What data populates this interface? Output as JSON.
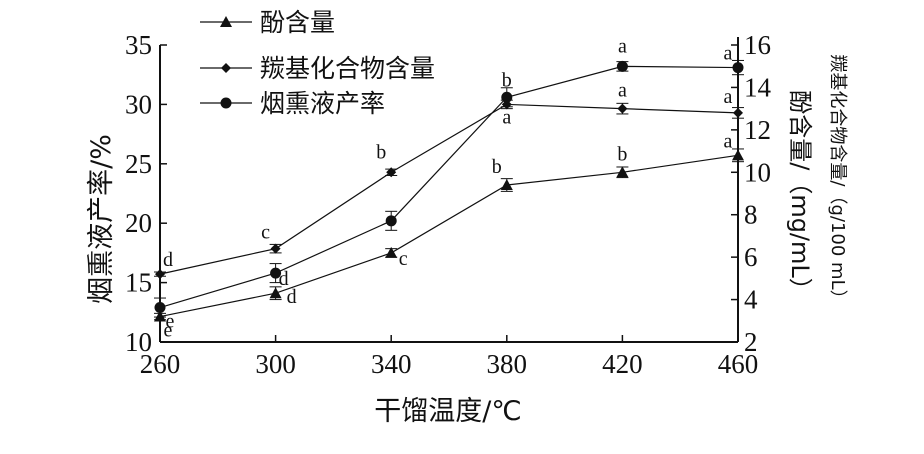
{
  "chart_data": {
    "type": "line",
    "xlabel": "干馏温度/℃",
    "ylabel_left": "烟熏液产率/%",
    "ylabel_right_inner": "酚含量/（mg/mL）",
    "ylabel_right_outer": "羰基化合物含量/（g/100 mL）",
    "x": [
      260,
      300,
      340,
      380,
      420,
      460
    ],
    "xlim": [
      260,
      460
    ],
    "y_left_lim": [
      10,
      35
    ],
    "y_left_ticks": [
      10,
      15,
      20,
      25,
      30,
      35
    ],
    "y_right_lim": [
      2,
      16
    ],
    "y_right_ticks": [
      2,
      4,
      6,
      8,
      10,
      12,
      14,
      16
    ],
    "legend_position": "top-left",
    "series": [
      {
        "name": "酚含量",
        "marker": "triangle",
        "axis": "right",
        "values": [
          3.2,
          4.3,
          6.2,
          9.4,
          10.0,
          10.8
        ],
        "errors": [
          0.15,
          0.3,
          0.2,
          0.3,
          0.25,
          0.3
        ],
        "letters": [
          "e",
          "d",
          "c",
          "b",
          "b",
          "a"
        ]
      },
      {
        "name": "羰基化合物含量",
        "marker": "diamond",
        "axis": "right",
        "values": [
          5.2,
          6.4,
          10.0,
          13.2,
          13.0,
          12.8
        ],
        "errors": [
          0.1,
          0.2,
          0.15,
          0.2,
          0.25,
          0.25
        ],
        "letters": [
          "d",
          "c",
          "b",
          "b",
          "a",
          "a"
        ]
      },
      {
        "name": "烟熏液产率",
        "marker": "circle",
        "axis": "left",
        "values": [
          12.9,
          15.8,
          20.2,
          30.6,
          33.2,
          33.1
        ],
        "errors": [
          0.8,
          0.8,
          0.8,
          0.8,
          0.4,
          0.6
        ],
        "letters": [
          "e",
          "d",
          "",
          "a",
          "a",
          "a"
        ]
      }
    ]
  }
}
